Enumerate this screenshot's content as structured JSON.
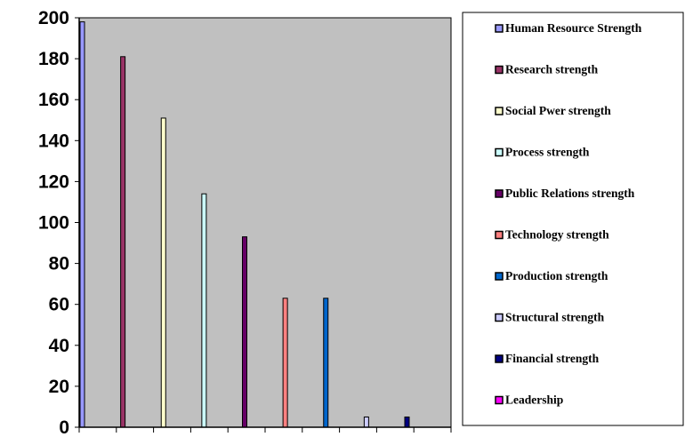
{
  "chart_data": {
    "type": "bar",
    "title": "",
    "xlabel": "",
    "ylabel": "",
    "ylim": [
      0,
      200
    ],
    "yticks": [
      "0",
      "20",
      "40",
      "60",
      "80",
      "100",
      "120",
      "140",
      "160",
      "180",
      "200"
    ],
    "plot_background": "#c0c0c0",
    "grid": false,
    "legend_placement": "right",
    "series": [
      {
        "name": "Human Resource Strength",
        "value": 198,
        "color": "#9999ff"
      },
      {
        "name": "Research strength",
        "value": 181,
        "color": "#993366"
      },
      {
        "name": "Social Pwer strength",
        "value": 151,
        "color": "#ffffcc"
      },
      {
        "name": "Process strength",
        "value": 114,
        "color": "#ccffff"
      },
      {
        "name": "Public Relations strength",
        "value": 93,
        "color": "#660066"
      },
      {
        "name": "Technology strength",
        "value": 63,
        "color": "#ff8080"
      },
      {
        "name": "Production strength",
        "value": 63,
        "color": "#0066cc"
      },
      {
        "name": "Structural strength",
        "value": 5,
        "color": "#ccccff"
      },
      {
        "name": "Financial strength",
        "value": 5,
        "color": "#000080"
      },
      {
        "name": "Leadership",
        "value": 0,
        "color": "#ff00ff"
      }
    ]
  }
}
